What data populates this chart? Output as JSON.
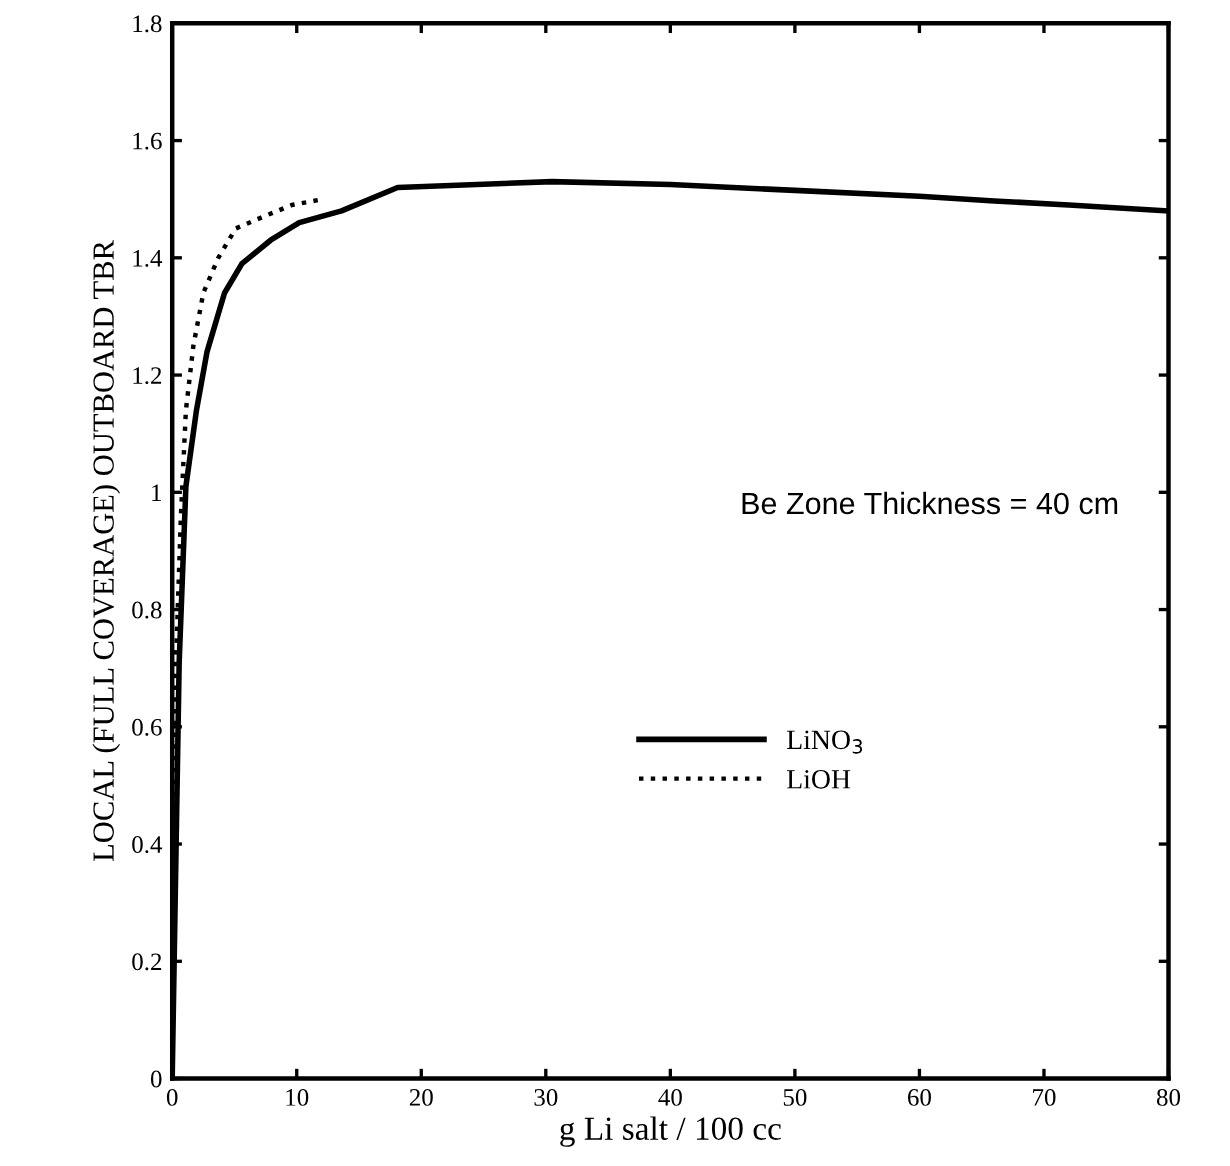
{
  "chart_data": {
    "type": "line",
    "xlabel": "g Li salt / 100 cc",
    "ylabel": "LOCAL (FULL COVERAGE) OUTBOARD TBR",
    "annotations": [
      "Be Zone Thickness = 40 cm"
    ],
    "series": [
      {
        "name": "LiNO$_{3}$",
        "color": "#000000",
        "line_style": "solid",
        "x": [
          0,
          0.56,
          1.1,
          1.95,
          2.8,
          4.2,
          5.6,
          7.9,
          10.2,
          13.6,
          18.1,
          30.5,
          40,
          50,
          60,
          66,
          72,
          80
        ],
        "values": [
          0,
          0.71,
          1.01,
          1.14,
          1.24,
          1.34,
          1.39,
          1.43,
          1.46,
          1.48,
          1.52,
          1.53,
          1.525,
          1.515,
          1.505,
          1.497,
          1.49,
          1.48
        ]
      },
      {
        "name": "LiOH",
        "color": "#000000",
        "line_style": "dotted",
        "x": [
          0,
          0.1,
          0.3,
          0.7,
          1.1,
          1.7,
          2.5,
          3.7,
          5.1,
          7.3,
          9.6,
          12.1
        ],
        "values": [
          0,
          0.2,
          0.71,
          0.96,
          1.14,
          1.25,
          1.34,
          1.4,
          1.45,
          1.47,
          1.49,
          1.5
        ]
      }
    ],
    "xlim": [
      0,
      80
    ],
    "xticks": [
      0,
      10,
      20,
      30,
      40,
      50,
      60,
      70,
      80
    ],
    "ylim": [
      0,
      1.8
    ],
    "yticks": [
      0,
      0.2,
      0.4,
      0.6,
      0.8,
      1,
      1.2,
      1.4,
      1.6,
      1.8
    ],
    "grid": false,
    "legend": "center right",
    "marker": "none"
  }
}
